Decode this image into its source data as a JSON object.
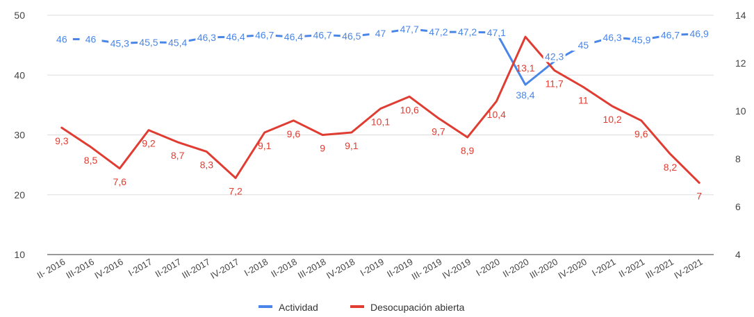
{
  "chart_data": {
    "type": "line",
    "categories": [
      "II- 2016",
      "III-2016",
      "IV-2016",
      "I-2017",
      "II-2017",
      "III-2017",
      "IV-2017",
      "I-2018",
      "II-2018",
      "III-2018",
      "IV-2018",
      "I-2019",
      "II-2019",
      "III- 2019",
      "IV-2019",
      "I-2020",
      "II-2020",
      "III-2020",
      "IV-2020",
      "I-2021",
      "II-2021",
      "III-2021",
      "IV-2021"
    ],
    "y_left": {
      "min": 10,
      "max": 50,
      "ticks": [
        "10",
        "20",
        "30",
        "40",
        "50"
      ]
    },
    "y_right": {
      "min": 4,
      "max": 14,
      "ticks": [
        "4",
        "6",
        "8",
        "10",
        "12",
        "14"
      ]
    },
    "grid": true,
    "legend_position": "bottom",
    "series": [
      {
        "name": "Actividad",
        "axis": "left",
        "color": "#4a86e8",
        "values": [
          46,
          46,
          45.3,
          45.5,
          45.4,
          46.3,
          46.4,
          46.7,
          46.4,
          46.7,
          46.5,
          47,
          47.7,
          47.2,
          47.2,
          47.1,
          38.4,
          42.3,
          45,
          46.3,
          45.9,
          46.7,
          46.9
        ],
        "labels": [
          "46",
          "46",
          "45,3",
          "45,5",
          "45,4",
          "46,3",
          "46,4",
          "46,7",
          "46,4",
          "46,7",
          "46,5",
          "47",
          "47,7",
          "47,2",
          "47,2",
          "47,1",
          "38,4",
          "42,3",
          "45",
          "46,3",
          "45,9",
          "46,7",
          "46,9"
        ]
      },
      {
        "name": "Desocupación abierta",
        "axis": "right",
        "color": "#e03c31",
        "values": [
          9.3,
          8.5,
          7.6,
          9.2,
          8.7,
          8.3,
          7.2,
          9.1,
          9.6,
          9,
          9.1,
          10.1,
          10.6,
          9.7,
          8.9,
          10.4,
          13.1,
          11.7,
          11,
          10.2,
          9.6,
          8.2,
          7
        ],
        "labels": [
          "9,3",
          "8,5",
          "7,6",
          "9,2",
          "8,7",
          "8,3",
          "7,2",
          "9,1",
          "9,6",
          "9",
          "9,1",
          "10,1",
          "10,6",
          "9,7",
          "8,9",
          "10,4",
          "13,1",
          "11,7",
          "11",
          "10,2",
          "9,6",
          "8,2",
          "7"
        ]
      }
    ]
  }
}
